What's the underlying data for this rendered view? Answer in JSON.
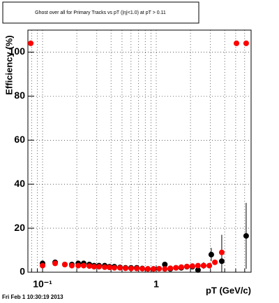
{
  "chart_data": {
    "type": "scatter",
    "title": "Ghost over all for Primary Tracks vs pT (|η|<1.0) at pT > 0.11",
    "x_label": "pT (GeV/c)",
    "y_label": "Efficiency (%)",
    "footer": "Fri Feb  1 10:30:19 2013",
    "log_x": true,
    "grid": true,
    "xlim": [
      0.0743,
      6.83
    ],
    "ylim": [
      0,
      110
    ],
    "xticks": [
      {
        "value": 0.1,
        "label": "10⁻¹"
      },
      1
    ],
    "xminorticks": [
      0.08,
      0.09,
      0.2,
      0.3,
      0.4,
      0.5,
      0.6,
      0.7,
      0.8,
      0.9,
      2,
      3,
      4,
      5,
      6
    ],
    "yticks": [
      0,
      20,
      40,
      60,
      80,
      100
    ],
    "series": [
      {
        "color": "#000000",
        "x": [
          0.1,
          0.129,
          0.157,
          0.181,
          0.206,
          0.23,
          0.258,
          0.284,
          0.314,
          0.352,
          0.388,
          0.428,
          0.48,
          0.537,
          0.601,
          0.673,
          0.754,
          0.844,
          0.945,
          1.19,
          1.33,
          1.49,
          1.66,
          1.86,
          2.08,
          2.33,
          2.61,
          3.05,
          3.77,
          6.18
        ],
        "values": [
          4,
          4.5,
          3.5,
          3.5,
          4,
          4,
          3.5,
          3,
          3,
          3,
          2.5,
          2.5,
          2.2,
          2,
          2,
          2,
          1.7,
          1.5,
          1.5,
          3.5,
          1.5,
          2,
          2,
          2.5,
          2.5,
          1,
          3,
          8,
          5,
          16.5
        ],
        "errors": [
          1,
          1,
          0.8,
          0.8,
          0.8,
          0.8,
          0.7,
          0.7,
          0.7,
          0.7,
          0.6,
          0.6,
          0.6,
          0.6,
          0.6,
          0.6,
          0.6,
          0.6,
          0.6,
          1,
          0.8,
          0.8,
          0.8,
          1,
          1,
          1,
          1.5,
          3,
          12,
          15
        ]
      },
      {
        "color": "#ff0000",
        "x": [
          0.0787,
          0.1,
          0.129,
          0.157,
          0.181,
          0.206,
          0.23,
          0.258,
          0.284,
          0.314,
          0.352,
          0.388,
          0.428,
          0.48,
          0.537,
          0.601,
          0.673,
          0.754,
          0.844,
          0.945,
          1.06,
          1.19,
          1.33,
          1.49,
          1.66,
          1.86,
          2.08,
          2.33,
          2.61,
          2.93,
          3.28,
          3.77,
          5.08,
          6.18
        ],
        "values": [
          104,
          3,
          4,
          3.5,
          3,
          3,
          3,
          2.8,
          2.5,
          2.5,
          2.3,
          2.2,
          2,
          2,
          1.8,
          1.7,
          1.7,
          1.6,
          1.5,
          1.5,
          1.6,
          1.5,
          1.8,
          2,
          2.3,
          2.6,
          2.8,
          3,
          3,
          3,
          4.5,
          9,
          104,
          104
        ]
      }
    ]
  }
}
